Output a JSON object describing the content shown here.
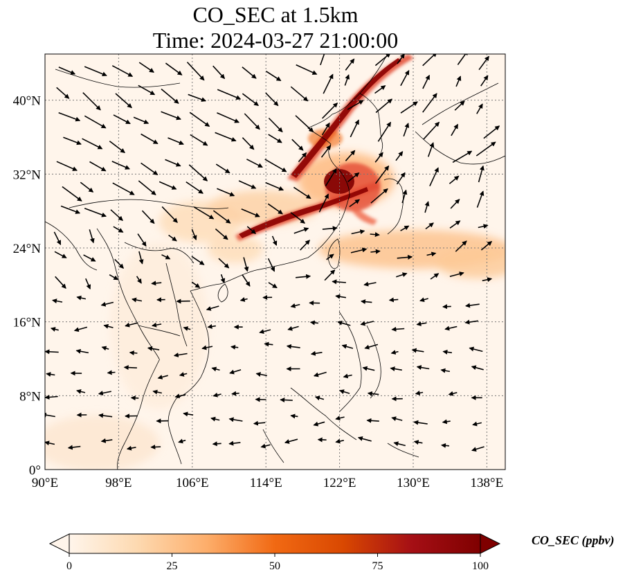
{
  "title": {
    "line1": "CO_SEC at 1.5km",
    "line2": "Time: 2024-03-27 21:00:00"
  },
  "map": {
    "lon_range": [
      90,
      140
    ],
    "lat_range": [
      0,
      45
    ],
    "lon_ticks": [
      {
        "value": 90,
        "label": "90°E"
      },
      {
        "value": 98,
        "label": "98°E"
      },
      {
        "value": 106,
        "label": "106°E"
      },
      {
        "value": 114,
        "label": "114°E"
      },
      {
        "value": 122,
        "label": "122°E"
      },
      {
        "value": 130,
        "label": "130°E"
      },
      {
        "value": 138,
        "label": "138°E"
      }
    ],
    "lat_ticks": [
      {
        "value": 0,
        "label": "0°"
      },
      {
        "value": 8,
        "label": "8°N"
      },
      {
        "value": 16,
        "label": "16°N"
      },
      {
        "value": 24,
        "label": "24°N"
      },
      {
        "value": 32,
        "label": "32°N"
      },
      {
        "value": 40,
        "label": "40°N"
      }
    ],
    "gridlines": "dotted"
  },
  "colorbar": {
    "label": "CO_SEC (ppbv)",
    "min": 0,
    "max": 100,
    "ticks": [
      {
        "value": 0,
        "label": "0"
      },
      {
        "value": 25,
        "label": "25"
      },
      {
        "value": 50,
        "label": "50"
      },
      {
        "value": 75,
        "label": "75"
      },
      {
        "value": 100,
        "label": "100"
      }
    ],
    "extend": "both",
    "colormap": [
      "#fff5eb",
      "#fdd9b0",
      "#fdae6b",
      "#f16913",
      "#d94801",
      "#a50f15",
      "#7f0000"
    ]
  },
  "colors": {
    "background": "#fff5eb",
    "plume_low": "#fdd9b0",
    "plume_mid": "#e34a33",
    "plume_high": "#8b0000",
    "coastline": "#000000",
    "wind_arrow": "#000000"
  }
}
